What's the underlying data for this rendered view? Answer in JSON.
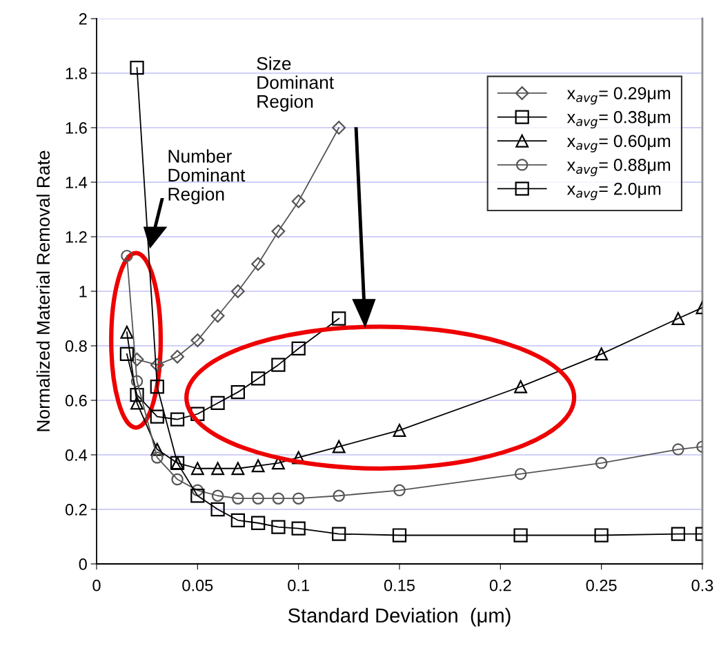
{
  "chart_data": {
    "type": "line",
    "xlabel": "Standard Deviation  (μm)",
    "ylabel": "Normalized Material Removal Rate",
    "xlim": [
      0,
      0.3
    ],
    "xticks": [
      0,
      0.05,
      0.1,
      0.15,
      0.2,
      0.25,
      0.3
    ],
    "ylim": [
      0,
      2
    ],
    "yticks": [
      0,
      0.2,
      0.4,
      0.6,
      0.8,
      1,
      1.2,
      1.4,
      1.6,
      1.8,
      2
    ],
    "grid": "y",
    "legend": "top right",
    "annotations": [
      "Number\nDominant\nRegion",
      "Size\nDominant\nRegion"
    ],
    "series": [
      {
        "name": "x$_{avg}$= 0.29μm",
        "color": "#555555",
        "marker": "diamond",
        "x": [
          0.02,
          0.03,
          0.04,
          0.05,
          0.06,
          0.07,
          0.08,
          0.09,
          0.1,
          0.12
        ],
        "values": [
          0.75,
          0.73,
          0.76,
          0.82,
          0.91,
          1.0,
          1.1,
          1.22,
          1.33,
          1.6
        ]
      },
      {
        "name": "x$_{avg}$= 0.38μm",
        "color": "#000000",
        "marker": "square",
        "x": [
          0.015,
          0.02,
          0.03,
          0.04,
          0.05,
          0.06,
          0.07,
          0.08,
          0.09,
          0.1,
          0.12
        ],
        "values": [
          0.77,
          0.62,
          0.54,
          0.53,
          0.55,
          0.59,
          0.63,
          0.68,
          0.73,
          0.79,
          0.9
        ]
      },
      {
        "name": "x$_{avg}$= 0.60μm",
        "color": "#000000",
        "marker": "triangle",
        "x": [
          0.015,
          0.02,
          0.03,
          0.04,
          0.05,
          0.06,
          0.07,
          0.08,
          0.09,
          0.1,
          0.12,
          0.15,
          0.21,
          0.25,
          0.288,
          0.3
        ],
        "values": [
          0.85,
          0.59,
          0.42,
          0.37,
          0.35,
          0.35,
          0.35,
          0.36,
          0.37,
          0.39,
          0.43,
          0.49,
          0.65,
          0.77,
          0.9,
          0.94
        ]
      },
      {
        "name": "x$_{avg}$= 0.88μm",
        "color": "#555555",
        "marker": "circle",
        "x": [
          0.015,
          0.02,
          0.03,
          0.04,
          0.05,
          0.06,
          0.07,
          0.08,
          0.09,
          0.1,
          0.12,
          0.15,
          0.21,
          0.25,
          0.288,
          0.3
        ],
        "values": [
          1.13,
          0.67,
          0.39,
          0.31,
          0.27,
          0.25,
          0.24,
          0.24,
          0.24,
          0.24,
          0.25,
          0.27,
          0.33,
          0.37,
          0.42,
          0.43
        ]
      },
      {
        "name": "x$_{avg}$= 2.0μm",
        "color": "#000000",
        "marker": "square",
        "x": [
          0.02,
          0.03,
          0.04,
          0.05,
          0.06,
          0.07,
          0.08,
          0.09,
          0.1,
          0.12,
          0.15,
          0.21,
          0.25,
          0.288,
          0.3
        ],
        "values": [
          1.82,
          0.65,
          0.37,
          0.25,
          0.2,
          0.16,
          0.15,
          0.135,
          0.13,
          0.11,
          0.105,
          0.105,
          0.105,
          0.11,
          0.11
        ]
      }
    ]
  }
}
